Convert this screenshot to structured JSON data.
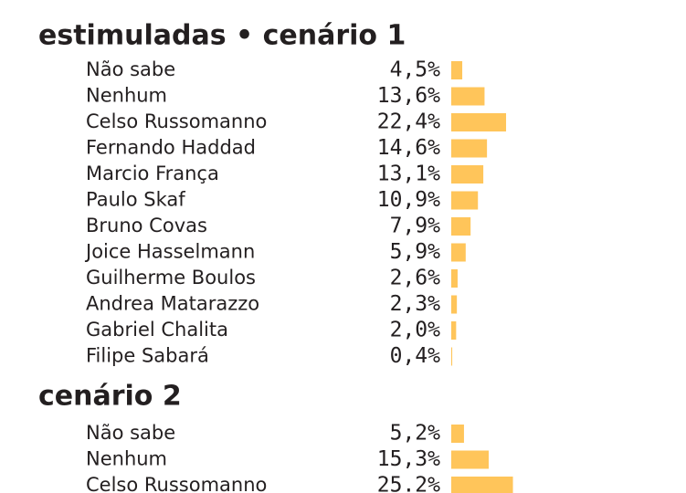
{
  "chart_data": [
    {
      "type": "bar",
      "title": "estimuladas • cenário 1",
      "categories": [
        "Não sabe",
        "Nenhum",
        "Celso Russomanno",
        "Fernando Haddad",
        "Marcio França",
        "Paulo Skaf",
        "Bruno Covas",
        "Joice Hasselmann",
        "Guilherme Boulos",
        "Andrea Matarazzo",
        "Gabriel Chalita",
        "Filipe Sabará"
      ],
      "values": [
        4.5,
        13.6,
        22.4,
        14.6,
        13.1,
        10.9,
        7.9,
        5.9,
        2.6,
        2.3,
        2.0,
        0.4
      ],
      "value_labels": [
        "4,5%",
        "13,6%",
        "22,4%",
        "14,6%",
        "13,1%",
        "10,9%",
        "7,9%",
        "5,9%",
        "2,6%",
        "2,3%",
        "2,0%",
        "0,4%"
      ],
      "color": "#ffc55a"
    },
    {
      "type": "bar",
      "title": "cenário 2",
      "categories": [
        "Não sabe",
        "Nenhum",
        "Celso Russomanno"
      ],
      "values": [
        5.2,
        15.3,
        25.2
      ],
      "value_labels": [
        "5,2%",
        "15,3%",
        "25.2%"
      ],
      "color": "#ffc55a"
    }
  ]
}
